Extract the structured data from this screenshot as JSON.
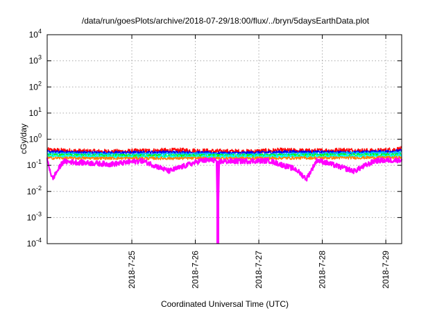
{
  "chart_data": {
    "type": "line",
    "title": "/data/run/goesPlots/archive/2018-07-29/18:00/flux/../bryn/5daysEarthData.plot",
    "xlabel": "Coordinated Universal Time (UTC)",
    "ylabel": "cGy/day",
    "yscale": "log",
    "ylim": [
      0.0001,
      10000
    ],
    "xlim": [
      "2018-07-24 04:00",
      "2018-07-29 18:00"
    ],
    "grid": true,
    "legend": "none",
    "x_ticks": [
      "2018-7-25",
      "2018-7-26",
      "2018-7-27",
      "2018-7-28",
      "2018-7-29"
    ],
    "y_ticks": [
      {
        "base": "10",
        "exp": "-4"
      },
      {
        "base": "10",
        "exp": "-3"
      },
      {
        "base": "10",
        "exp": "-2"
      },
      {
        "base": "10",
        "exp": "-1"
      },
      {
        "base": "10",
        "exp": "0"
      },
      {
        "base": "10",
        "exp": "1"
      },
      {
        "base": "10",
        "exp": "2"
      },
      {
        "base": "10",
        "exp": "3"
      },
      {
        "base": "10",
        "exp": "4"
      }
    ],
    "series": [
      {
        "color": "#ff0000",
        "baseline": 0.36,
        "anchors": [
          [
            "2018-07-24 04:00",
            0.38
          ],
          [
            "2018-07-24 18:00",
            0.34
          ],
          [
            "2018-07-25 06:00",
            0.33
          ],
          [
            "2018-07-25 20:00",
            0.36
          ],
          [
            "2018-07-26 08:00",
            0.37
          ],
          [
            "2018-07-26 20:00",
            0.34
          ],
          [
            "2018-07-27 08:00",
            0.33
          ],
          [
            "2018-07-27 20:00",
            0.37
          ],
          [
            "2018-07-28 08:00",
            0.35
          ],
          [
            "2018-07-28 20:00",
            0.38
          ],
          [
            "2018-07-29 08:00",
            0.35
          ],
          [
            "2018-07-29 18:00",
            0.42
          ]
        ]
      },
      {
        "color": "#0000ff",
        "baseline": 0.32,
        "anchors": [
          [
            "2018-07-24 04:00",
            0.33
          ],
          [
            "2018-07-25 00:00",
            0.3
          ],
          [
            "2018-07-26 00:00",
            0.32
          ],
          [
            "2018-07-27 00:00",
            0.29
          ],
          [
            "2018-07-28 00:00",
            0.33
          ],
          [
            "2018-07-29 00:00",
            0.31
          ],
          [
            "2018-07-29 18:00",
            0.36
          ]
        ]
      },
      {
        "color": "#00bfff",
        "baseline": 0.27,
        "anchors": [
          [
            "2018-07-24 04:00",
            0.28
          ],
          [
            "2018-07-25 12:00",
            0.26
          ],
          [
            "2018-07-26 12:00",
            0.27
          ],
          [
            "2018-07-27 12:00",
            0.25
          ],
          [
            "2018-07-28 12:00",
            0.28
          ],
          [
            "2018-07-29 18:00",
            0.3
          ]
        ]
      },
      {
        "color": "#00ff00",
        "baseline": 0.24,
        "anchors": [
          [
            "2018-07-24 04:00",
            0.24
          ],
          [
            "2018-07-26 00:00",
            0.23
          ],
          [
            "2018-07-28 00:00",
            0.24
          ],
          [
            "2018-07-29 18:00",
            0.25
          ]
        ]
      },
      {
        "color": "#00ffff",
        "baseline": 0.22,
        "anchors": [
          [
            "2018-07-24 04:00",
            0.22
          ],
          [
            "2018-07-26 00:00",
            0.21
          ],
          [
            "2018-07-28 00:00",
            0.22
          ],
          [
            "2018-07-29 18:00",
            0.23
          ]
        ]
      },
      {
        "color": "#ff8000",
        "baseline": 0.19,
        "anchors": [
          [
            "2018-07-24 04:00",
            0.19
          ],
          [
            "2018-07-26 00:00",
            0.185
          ],
          [
            "2018-07-28 00:00",
            0.19
          ],
          [
            "2018-07-29 18:00",
            0.2
          ]
        ]
      },
      {
        "color": "#ff00ff",
        "baseline": 0.16,
        "anchors": [
          [
            "2018-07-24 04:00",
            0.16
          ],
          [
            "2018-07-24 06:00",
            0.03
          ],
          [
            "2018-07-24 10:00",
            0.14
          ],
          [
            "2018-07-25 04:00",
            0.11
          ],
          [
            "2018-07-25 16:00",
            0.15
          ],
          [
            "2018-07-26 02:00",
            0.06
          ],
          [
            "2018-07-26 14:00",
            0.15
          ],
          [
            "2018-07-26 20:00",
            0.16
          ],
          [
            "2018-07-26 20:30",
            0.0001
          ],
          [
            "2018-07-26 21:00",
            0.14
          ],
          [
            "2018-07-27 16:00",
            0.15
          ],
          [
            "2018-07-28 02:00",
            0.07
          ],
          [
            "2018-07-28 06:00",
            0.03
          ],
          [
            "2018-07-28 10:00",
            0.16
          ],
          [
            "2018-07-29 00:00",
            0.06
          ],
          [
            "2018-07-29 08:00",
            0.15
          ],
          [
            "2018-07-29 18:00",
            0.16
          ]
        ]
      }
    ]
  }
}
